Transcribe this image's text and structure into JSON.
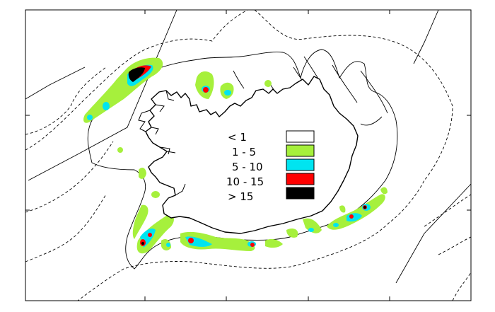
{
  "legend": {
    "entries": [
      {
        "label": "< 1",
        "color": "#ffffff"
      },
      {
        "label": "1 -  5",
        "color": "#a6f03c"
      },
      {
        "label": "5 - 10",
        "color": "#00e4f0"
      },
      {
        "label": "10 - 15",
        "color": "#ff0000"
      },
      {
        "label": "> 15",
        "color": "#000000"
      }
    ]
  },
  "colors": {
    "class_1_5": "#a6f03c",
    "class_5_10": "#00e4f0",
    "class_10_15": "#ff0000",
    "class_gt_15": "#000000",
    "background": "#ffffff",
    "lines": "#000000"
  }
}
